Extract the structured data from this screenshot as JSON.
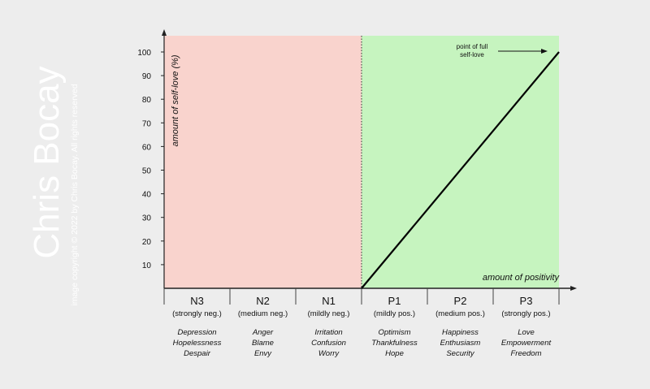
{
  "watermark": {
    "name": "Chris Bocay",
    "copyright": "image copyright © 2022 by Chris Bocay. All rights reserved"
  },
  "colors": {
    "background": "#ededed",
    "negative_zone": "#f9d3cd",
    "positive_zone": "#c6f4bf",
    "line": "#000000",
    "watermark": "#ffffff"
  },
  "chart_data": {
    "type": "line",
    "ylabel": "amount of self-love (%)",
    "xlabel": "amount of positivity",
    "ylim": [
      0,
      100
    ],
    "yticks": [
      10,
      20,
      30,
      40,
      50,
      60,
      70,
      80,
      90,
      100
    ],
    "categories": [
      {
        "code": "N3",
        "desc": "(strongly neg.)",
        "emotions": [
          "Depression",
          "Hopelessness",
          "Despair"
        ]
      },
      {
        "code": "N2",
        "desc": "(medium neg.)",
        "emotions": [
          "Anger",
          "Blame",
          "Envy"
        ]
      },
      {
        "code": "N1",
        "desc": "(mildly neg.)",
        "emotions": [
          "Irritation",
          "Confusion",
          "Worry"
        ]
      },
      {
        "code": "P1",
        "desc": "(mildly pos.)",
        "emotions": [
          "Optimism",
          "Thankfulness",
          "Hope"
        ]
      },
      {
        "code": "P2",
        "desc": "(medium pos.)",
        "emotions": [
          "Happiness",
          "Enthusiasm",
          "Security"
        ]
      },
      {
        "code": "P3",
        "desc": "(strongly pos.)",
        "emotions": [
          "Love",
          "Empowerment",
          "Freedom"
        ]
      }
    ],
    "series": [
      {
        "x": [
          0,
          3
        ],
        "y": [
          0,
          100
        ]
      }
    ],
    "annotation": {
      "lines": [
        "point of full",
        "self-love"
      ]
    }
  }
}
